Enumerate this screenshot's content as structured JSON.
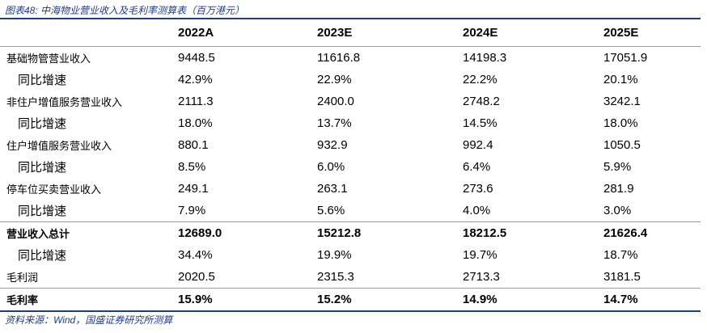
{
  "header": {
    "title": "图表48: 中海物业营业收入及毛利率测算表（百万港元）"
  },
  "table": {
    "columns": [
      "",
      "2022A",
      "2023E",
      "2024E",
      "2025E"
    ],
    "rows": [
      {
        "label": "基础物管营业收入",
        "values": [
          "9448.5",
          "11616.8",
          "14198.3",
          "17051.9"
        ]
      },
      {
        "label": "同比增速",
        "indent": true,
        "values": [
          "42.9%",
          "22.9%",
          "22.2%",
          "20.1%"
        ]
      },
      {
        "label": "非住户增值服务营业收入",
        "values": [
          "2111.3",
          "2400.0",
          "2748.2",
          "3242.1"
        ]
      },
      {
        "label": "同比增速",
        "indent": true,
        "values": [
          "18.0%",
          "13.7%",
          "14.5%",
          "18.0%"
        ]
      },
      {
        "label": "住户增值服务营业收入",
        "values": [
          "880.1",
          "932.9",
          "992.4",
          "1050.5"
        ]
      },
      {
        "label": "同比增速",
        "indent": true,
        "values": [
          "8.5%",
          "6.0%",
          "6.4%",
          "5.9%"
        ]
      },
      {
        "label": "停车位买卖营业收入",
        "values": [
          "249.1",
          "263.1",
          "273.6",
          "281.9"
        ]
      },
      {
        "label": "同比增速",
        "indent": true,
        "values": [
          "7.9%",
          "5.6%",
          "4.0%",
          "3.0%"
        ]
      },
      {
        "label": "营业收入总计",
        "bold": true,
        "values": [
          "12689.0",
          "15212.8",
          "18212.5",
          "21626.4"
        ]
      },
      {
        "label": "同比增速",
        "indent": true,
        "values": [
          "34.4%",
          "19.9%",
          "19.7%",
          "18.7%"
        ]
      },
      {
        "label": "毛利润",
        "values": [
          "2020.5",
          "2315.3",
          "2713.3",
          "3181.5"
        ]
      },
      {
        "label": "毛利率",
        "bold": true,
        "values": [
          "15.9%",
          "15.2%",
          "14.9%",
          "14.7%"
        ]
      }
    ]
  },
  "footer": {
    "source": "资料来源：Wind，国盛证券研究所测算"
  }
}
